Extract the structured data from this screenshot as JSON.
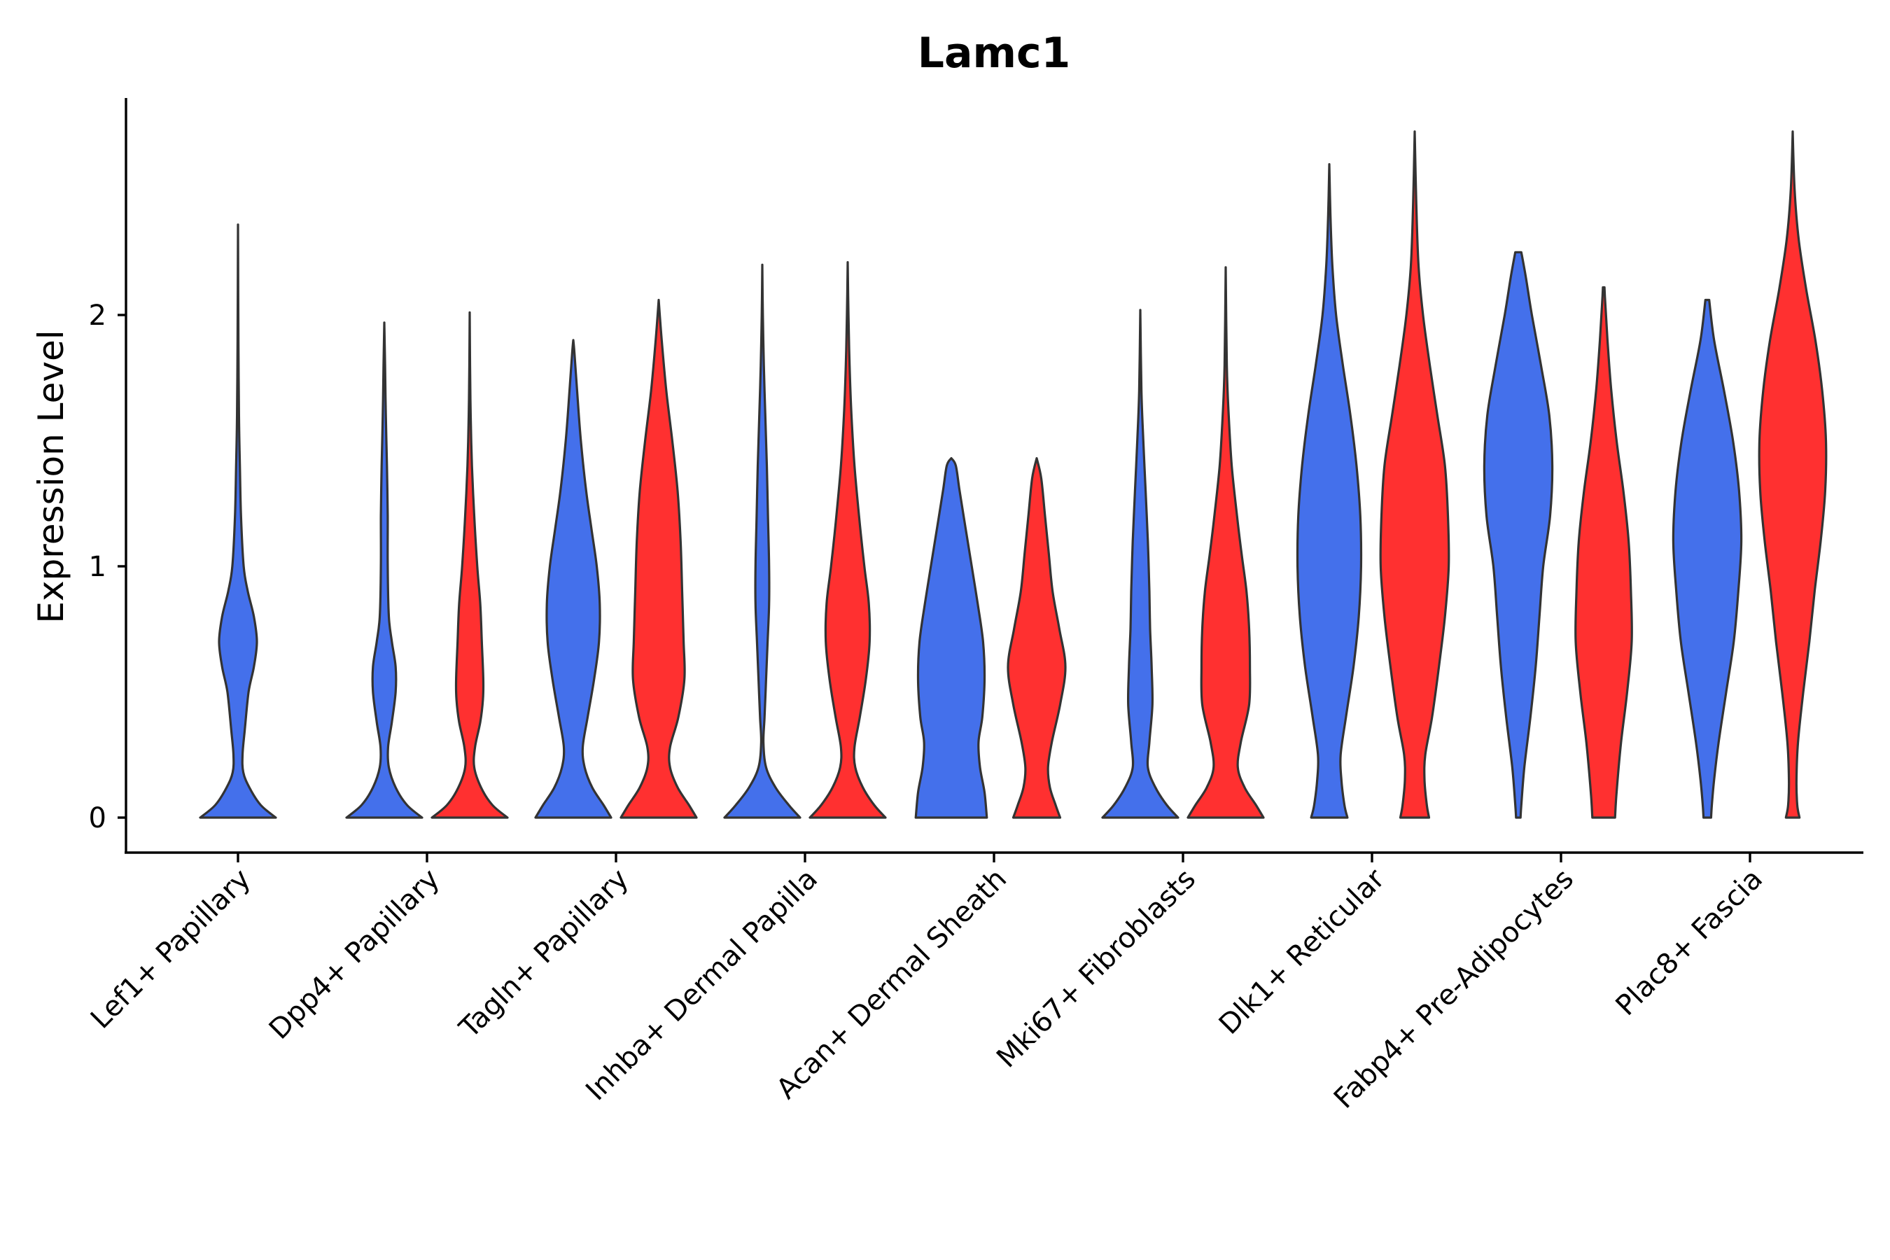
{
  "chart_data": {
    "type": "violin",
    "title": "Lamc1",
    "xlabel": "",
    "ylabel": "Expression Level",
    "ylim": [
      -0.14,
      2.85
    ],
    "yticks": [
      0,
      1,
      2
    ],
    "grid": false,
    "legend": "none",
    "categories": [
      "Lef1+ Papillary",
      "Dpp4+ Papillary",
      "Tagln+ Papillary",
      "Inhba+ Dermal Papilla",
      "Acan+ Dermal Sheath",
      "Mki67+ Fibroblasts",
      "Dlk1+ Reticular",
      "Fabp4+ Pre-Adipocytes",
      "Plac8+ Fascia"
    ],
    "series": [
      {
        "name": "group1",
        "color": "#4470EB"
      },
      {
        "name": "group2",
        "color": "#FF3030"
      }
    ],
    "violins": [
      {
        "category": "Lef1+ Papillary",
        "series": "group1",
        "max": 2.36,
        "halfwidth": 0.9,
        "profile": [
          [
            0,
            1.0
          ],
          [
            0.05,
            0.6
          ],
          [
            0.12,
            0.3
          ],
          [
            0.18,
            0.14
          ],
          [
            0.25,
            0.12
          ],
          [
            0.35,
            0.18
          ],
          [
            0.5,
            0.28
          ],
          [
            0.6,
            0.42
          ],
          [
            0.7,
            0.5
          ],
          [
            0.8,
            0.42
          ],
          [
            0.9,
            0.26
          ],
          [
            1.0,
            0.15
          ],
          [
            1.2,
            0.08
          ],
          [
            1.4,
            0.05
          ],
          [
            1.6,
            0.025
          ],
          [
            1.9,
            0.012
          ],
          [
            2.1,
            0.006
          ],
          [
            2.36,
            0.0
          ]
        ]
      },
      {
        "category": "Dpp4+ Papillary",
        "series": "group1",
        "max": 1.97,
        "halfwidth": 0.9,
        "profile": [
          [
            0,
            1.0
          ],
          [
            0.05,
            0.6
          ],
          [
            0.12,
            0.3
          ],
          [
            0.2,
            0.12
          ],
          [
            0.28,
            0.1
          ],
          [
            0.38,
            0.2
          ],
          [
            0.5,
            0.3
          ],
          [
            0.6,
            0.3
          ],
          [
            0.7,
            0.2
          ],
          [
            0.8,
            0.12
          ],
          [
            1.0,
            0.09
          ],
          [
            1.2,
            0.09
          ],
          [
            1.4,
            0.07
          ],
          [
            1.6,
            0.04
          ],
          [
            1.8,
            0.02
          ],
          [
            1.97,
            0.0
          ]
        ]
      },
      {
        "category": "Dpp4+ Papillary",
        "series": "group2",
        "max": 2.01,
        "halfwidth": 0.9,
        "profile": [
          [
            0,
            1.0
          ],
          [
            0.05,
            0.6
          ],
          [
            0.12,
            0.3
          ],
          [
            0.2,
            0.12
          ],
          [
            0.28,
            0.14
          ],
          [
            0.38,
            0.28
          ],
          [
            0.47,
            0.35
          ],
          [
            0.55,
            0.36
          ],
          [
            0.7,
            0.32
          ],
          [
            0.85,
            0.28
          ],
          [
            1.0,
            0.2
          ],
          [
            1.2,
            0.12
          ],
          [
            1.4,
            0.06
          ],
          [
            1.6,
            0.025
          ],
          [
            1.8,
            0.01
          ],
          [
            2.01,
            0.0
          ]
        ]
      },
      {
        "category": "Tagln+ Papillary",
        "series": "group1",
        "max": 1.9,
        "halfwidth": 0.9,
        "profile": [
          [
            0,
            1.0
          ],
          [
            0.05,
            0.8
          ],
          [
            0.12,
            0.5
          ],
          [
            0.2,
            0.3
          ],
          [
            0.28,
            0.25
          ],
          [
            0.4,
            0.38
          ],
          [
            0.55,
            0.55
          ],
          [
            0.7,
            0.68
          ],
          [
            0.85,
            0.7
          ],
          [
            1.0,
            0.62
          ],
          [
            1.15,
            0.48
          ],
          [
            1.3,
            0.34
          ],
          [
            1.5,
            0.2
          ],
          [
            1.7,
            0.1
          ],
          [
            1.85,
            0.03
          ],
          [
            1.9,
            0.0
          ]
        ]
      },
      {
        "category": "Tagln+ Papillary",
        "series": "group2",
        "max": 2.06,
        "halfwidth": 0.9,
        "profile": [
          [
            0,
            1.0
          ],
          [
            0.05,
            0.8
          ],
          [
            0.12,
            0.5
          ],
          [
            0.2,
            0.3
          ],
          [
            0.28,
            0.3
          ],
          [
            0.4,
            0.52
          ],
          [
            0.55,
            0.68
          ],
          [
            0.7,
            0.66
          ],
          [
            0.9,
            0.62
          ],
          [
            1.1,
            0.58
          ],
          [
            1.3,
            0.5
          ],
          [
            1.5,
            0.36
          ],
          [
            1.7,
            0.2
          ],
          [
            1.9,
            0.08
          ],
          [
            2.06,
            0.0
          ]
        ]
      },
      {
        "category": "Inhba+ Dermal Papilla",
        "series": "group1",
        "max": 2.2,
        "halfwidth": 0.9,
        "profile": [
          [
            0,
            1.0
          ],
          [
            0.05,
            0.7
          ],
          [
            0.12,
            0.35
          ],
          [
            0.2,
            0.1
          ],
          [
            0.3,
            0.03
          ],
          [
            0.4,
            0.06
          ],
          [
            0.55,
            0.1
          ],
          [
            0.7,
            0.14
          ],
          [
            0.85,
            0.18
          ],
          [
            1.0,
            0.18
          ],
          [
            1.2,
            0.15
          ],
          [
            1.4,
            0.12
          ],
          [
            1.6,
            0.08
          ],
          [
            1.8,
            0.04
          ],
          [
            2.0,
            0.015
          ],
          [
            2.2,
            0.0
          ]
        ]
      },
      {
        "category": "Inhba+ Dermal Papilla",
        "series": "group2",
        "max": 2.21,
        "halfwidth": 0.9,
        "profile": [
          [
            0,
            1.0
          ],
          [
            0.05,
            0.7
          ],
          [
            0.12,
            0.4
          ],
          [
            0.2,
            0.2
          ],
          [
            0.28,
            0.18
          ],
          [
            0.4,
            0.32
          ],
          [
            0.55,
            0.48
          ],
          [
            0.7,
            0.58
          ],
          [
            0.85,
            0.56
          ],
          [
            1.0,
            0.44
          ],
          [
            1.2,
            0.3
          ],
          [
            1.4,
            0.18
          ],
          [
            1.6,
            0.1
          ],
          [
            1.8,
            0.05
          ],
          [
            2.0,
            0.02
          ],
          [
            2.21,
            0.0
          ]
        ]
      },
      {
        "category": "Acan+ Dermal Sheath",
        "series": "group1",
        "max": 1.43,
        "halfwidth": 0.9,
        "profile": [
          [
            0,
            0.94
          ],
          [
            0.1,
            0.88
          ],
          [
            0.2,
            0.76
          ],
          [
            0.3,
            0.72
          ],
          [
            0.4,
            0.82
          ],
          [
            0.55,
            0.88
          ],
          [
            0.7,
            0.84
          ],
          [
            0.85,
            0.7
          ],
          [
            1.0,
            0.54
          ],
          [
            1.15,
            0.38
          ],
          [
            1.3,
            0.22
          ],
          [
            1.4,
            0.12
          ],
          [
            1.43,
            0.0
          ]
        ]
      },
      {
        "category": "Acan+ Dermal Sheath",
        "series": "group2",
        "max": 1.43,
        "halfwidth": 0.9,
        "profile": [
          [
            0,
            0.62
          ],
          [
            0.05,
            0.5
          ],
          [
            0.12,
            0.35
          ],
          [
            0.2,
            0.3
          ],
          [
            0.3,
            0.4
          ],
          [
            0.45,
            0.62
          ],
          [
            0.6,
            0.76
          ],
          [
            0.75,
            0.6
          ],
          [
            0.9,
            0.42
          ],
          [
            1.05,
            0.32
          ],
          [
            1.2,
            0.22
          ],
          [
            1.35,
            0.12
          ],
          [
            1.43,
            0.0
          ]
        ]
      },
      {
        "category": "Mki67+ Fibroblasts",
        "series": "group1",
        "max": 2.02,
        "halfwidth": 0.9,
        "profile": [
          [
            0,
            1.0
          ],
          [
            0.05,
            0.7
          ],
          [
            0.12,
            0.4
          ],
          [
            0.2,
            0.2
          ],
          [
            0.3,
            0.24
          ],
          [
            0.45,
            0.32
          ],
          [
            0.6,
            0.3
          ],
          [
            0.75,
            0.26
          ],
          [
            0.9,
            0.24
          ],
          [
            1.1,
            0.2
          ],
          [
            1.3,
            0.14
          ],
          [
            1.5,
            0.08
          ],
          [
            1.7,
            0.03
          ],
          [
            2.02,
            0.0
          ]
        ]
      },
      {
        "category": "Mki67+ Fibroblasts",
        "series": "group2",
        "max": 2.19,
        "halfwidth": 0.9,
        "profile": [
          [
            0,
            1.0
          ],
          [
            0.05,
            0.8
          ],
          [
            0.12,
            0.5
          ],
          [
            0.2,
            0.32
          ],
          [
            0.3,
            0.4
          ],
          [
            0.45,
            0.62
          ],
          [
            0.6,
            0.64
          ],
          [
            0.75,
            0.62
          ],
          [
            0.9,
            0.55
          ],
          [
            1.05,
            0.42
          ],
          [
            1.2,
            0.3
          ],
          [
            1.4,
            0.16
          ],
          [
            1.6,
            0.08
          ],
          [
            1.8,
            0.03
          ],
          [
            2.19,
            0.0
          ]
        ]
      },
      {
        "category": "Dlk1+ Reticular",
        "series": "group1",
        "max": 2.6,
        "halfwidth": 0.9,
        "profile": [
          [
            0,
            0.48
          ],
          [
            0.05,
            0.4
          ],
          [
            0.15,
            0.32
          ],
          [
            0.25,
            0.3
          ],
          [
            0.4,
            0.44
          ],
          [
            0.6,
            0.64
          ],
          [
            0.8,
            0.78
          ],
          [
            1.0,
            0.84
          ],
          [
            1.2,
            0.82
          ],
          [
            1.4,
            0.72
          ],
          [
            1.6,
            0.56
          ],
          [
            1.8,
            0.36
          ],
          [
            2.0,
            0.18
          ],
          [
            2.2,
            0.08
          ],
          [
            2.4,
            0.03
          ],
          [
            2.6,
            0.0
          ]
        ]
      },
      {
        "category": "Dlk1+ Reticular",
        "series": "group2",
        "max": 2.73,
        "halfwidth": 0.9,
        "profile": [
          [
            0,
            0.38
          ],
          [
            0.05,
            0.32
          ],
          [
            0.15,
            0.26
          ],
          [
            0.25,
            0.28
          ],
          [
            0.4,
            0.46
          ],
          [
            0.6,
            0.64
          ],
          [
            0.8,
            0.8
          ],
          [
            1.0,
            0.9
          ],
          [
            1.2,
            0.88
          ],
          [
            1.4,
            0.8
          ],
          [
            1.6,
            0.6
          ],
          [
            1.8,
            0.4
          ],
          [
            2.0,
            0.22
          ],
          [
            2.2,
            0.1
          ],
          [
            2.45,
            0.04
          ],
          [
            2.73,
            0.0
          ]
        ]
      },
      {
        "category": "Fabp4+ Pre-Adipocytes",
        "series": "group1",
        "max": 2.25,
        "halfwidth": 0.9,
        "profile": [
          [
            0,
            0.06
          ],
          [
            0.05,
            0.08
          ],
          [
            0.2,
            0.16
          ],
          [
            0.4,
            0.32
          ],
          [
            0.6,
            0.46
          ],
          [
            0.8,
            0.56
          ],
          [
            1.0,
            0.66
          ],
          [
            1.2,
            0.84
          ],
          [
            1.4,
            0.9
          ],
          [
            1.6,
            0.82
          ],
          [
            1.8,
            0.6
          ],
          [
            2.0,
            0.36
          ],
          [
            2.15,
            0.2
          ],
          [
            2.25,
            0.08
          ]
        ]
      },
      {
        "category": "Fabp4+ Pre-Adipocytes",
        "series": "group2",
        "max": 2.11,
        "halfwidth": 0.9,
        "profile": [
          [
            0,
            0.3
          ],
          [
            0.1,
            0.34
          ],
          [
            0.3,
            0.46
          ],
          [
            0.5,
            0.62
          ],
          [
            0.7,
            0.74
          ],
          [
            0.9,
            0.72
          ],
          [
            1.1,
            0.66
          ],
          [
            1.3,
            0.52
          ],
          [
            1.5,
            0.34
          ],
          [
            1.7,
            0.2
          ],
          [
            1.9,
            0.1
          ],
          [
            2.05,
            0.04
          ],
          [
            2.11,
            0.02
          ]
        ]
      },
      {
        "category": "Plac8+ Fascia",
        "series": "group1",
        "max": 2.06,
        "halfwidth": 0.9,
        "profile": [
          [
            0,
            0.1
          ],
          [
            0.05,
            0.12
          ],
          [
            0.15,
            0.18
          ],
          [
            0.3,
            0.3
          ],
          [
            0.5,
            0.5
          ],
          [
            0.7,
            0.7
          ],
          [
            0.9,
            0.82
          ],
          [
            1.1,
            0.9
          ],
          [
            1.3,
            0.84
          ],
          [
            1.5,
            0.68
          ],
          [
            1.7,
            0.44
          ],
          [
            1.9,
            0.18
          ],
          [
            2.06,
            0.05
          ]
        ]
      },
      {
        "category": "Plac8+ Fascia",
        "series": "group2",
        "max": 2.73,
        "halfwidth": 0.9,
        "profile": [
          [
            0,
            0.18
          ],
          [
            0.05,
            0.12
          ],
          [
            0.15,
            0.1
          ],
          [
            0.3,
            0.14
          ],
          [
            0.5,
            0.28
          ],
          [
            0.7,
            0.44
          ],
          [
            0.9,
            0.58
          ],
          [
            1.1,
            0.74
          ],
          [
            1.3,
            0.86
          ],
          [
            1.5,
            0.88
          ],
          [
            1.7,
            0.78
          ],
          [
            1.9,
            0.6
          ],
          [
            2.1,
            0.36
          ],
          [
            2.3,
            0.16
          ],
          [
            2.5,
            0.05
          ],
          [
            2.73,
            0.0
          ]
        ]
      }
    ]
  }
}
